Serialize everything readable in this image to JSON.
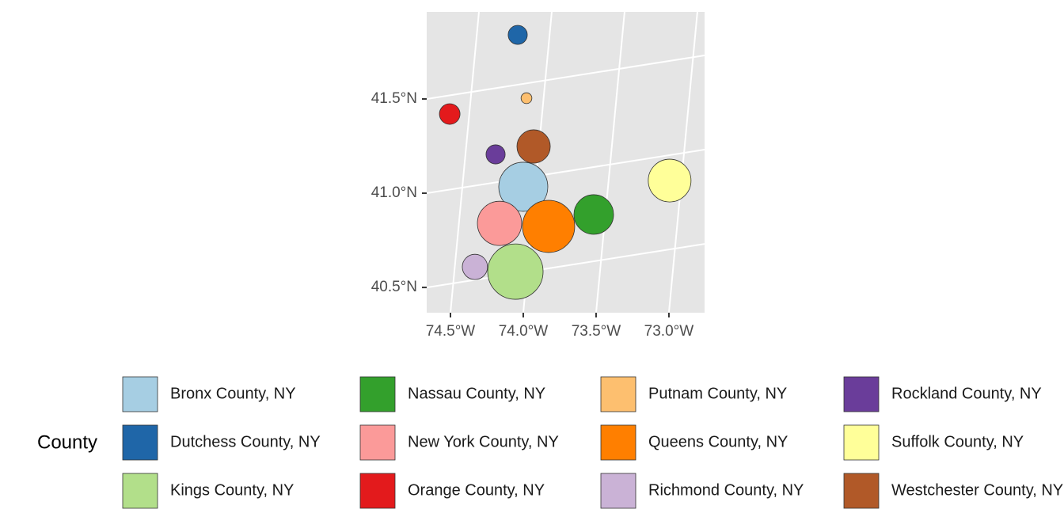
{
  "chart_data": {
    "type": "bubble-map",
    "legend_title": "County",
    "legend": "bottom",
    "grid": true,
    "xlim": [
      -74.663,
      -72.755
    ],
    "ylim": [
      40.366,
      41.962
    ],
    "xticks": [
      {
        "value": -74.5,
        "label": "74.5°W"
      },
      {
        "value": -74.0,
        "label": "74.0°W"
      },
      {
        "value": -73.5,
        "label": "73.5°W"
      },
      {
        "value": -73.0,
        "label": "73.0°W"
      }
    ],
    "yticks": [
      {
        "value": 40.5,
        "label": "40.5°N"
      },
      {
        "value": 41.0,
        "label": "41.0°N"
      },
      {
        "value": 41.5,
        "label": "41.5°N"
      }
    ],
    "series": [
      {
        "name": "Bronx County, NY",
        "color": "#a6cee3",
        "x": [
          -74.0
        ],
        "values": [
          41.034
        ],
        "sizes": [
          2.04
        ]
      },
      {
        "name": "Dutchess County, NY",
        "color": "#1f66a8",
        "x": [
          -74.038
        ],
        "values": [
          41.84
        ],
        "sizes": [
          0.31
        ]
      },
      {
        "name": "Kings County, NY",
        "color": "#b2df8a",
        "x": [
          -74.054
        ],
        "values": [
          40.584
        ],
        "sizes": [
          2.6
        ]
      },
      {
        "name": "Nassau County, NY",
        "color": "#33a02c",
        "x": [
          -73.516
        ],
        "values": [
          40.887
        ],
        "sizes": [
          1.33
        ]
      },
      {
        "name": "New York County, NY",
        "color": "#fb9a99",
        "x": [
          -74.163
        ],
        "values": [
          40.84
        ],
        "sizes": [
          1.66
        ]
      },
      {
        "name": "Orange County, NY",
        "color": "#e31a1c",
        "x": [
          -74.505
        ],
        "values": [
          41.42
        ],
        "sizes": [
          0.36
        ]
      },
      {
        "name": "Putnam County, NY",
        "color": "#fdbf6f",
        "x": [
          -73.978
        ],
        "values": [
          41.504
        ],
        "sizes": [
          0.1
        ]
      },
      {
        "name": "Queens County, NY",
        "color": "#ff7f00",
        "x": [
          -73.826
        ],
        "values": [
          40.824
        ],
        "sizes": [
          2.31
        ]
      },
      {
        "name": "Richmond County, NY",
        "color": "#cab2d6",
        "x": [
          -74.332
        ],
        "values": [
          40.609
        ],
        "sizes": [
          0.54
        ]
      },
      {
        "name": "Rockland County, NY",
        "color": "#6a3d9a",
        "x": [
          -74.19
        ],
        "values": [
          41.206
        ],
        "sizes": [
          0.31
        ]
      },
      {
        "name": "Suffolk County, NY",
        "color": "#ffff99",
        "x": [
          -72.995
        ],
        "values": [
          41.067
        ],
        "sizes": [
          1.55
        ]
      },
      {
        "name": "Westchester County, NY",
        "color": "#b15928",
        "x": [
          -73.929
        ],
        "values": [
          41.248
        ],
        "sizes": [
          0.94
        ]
      }
    ]
  }
}
